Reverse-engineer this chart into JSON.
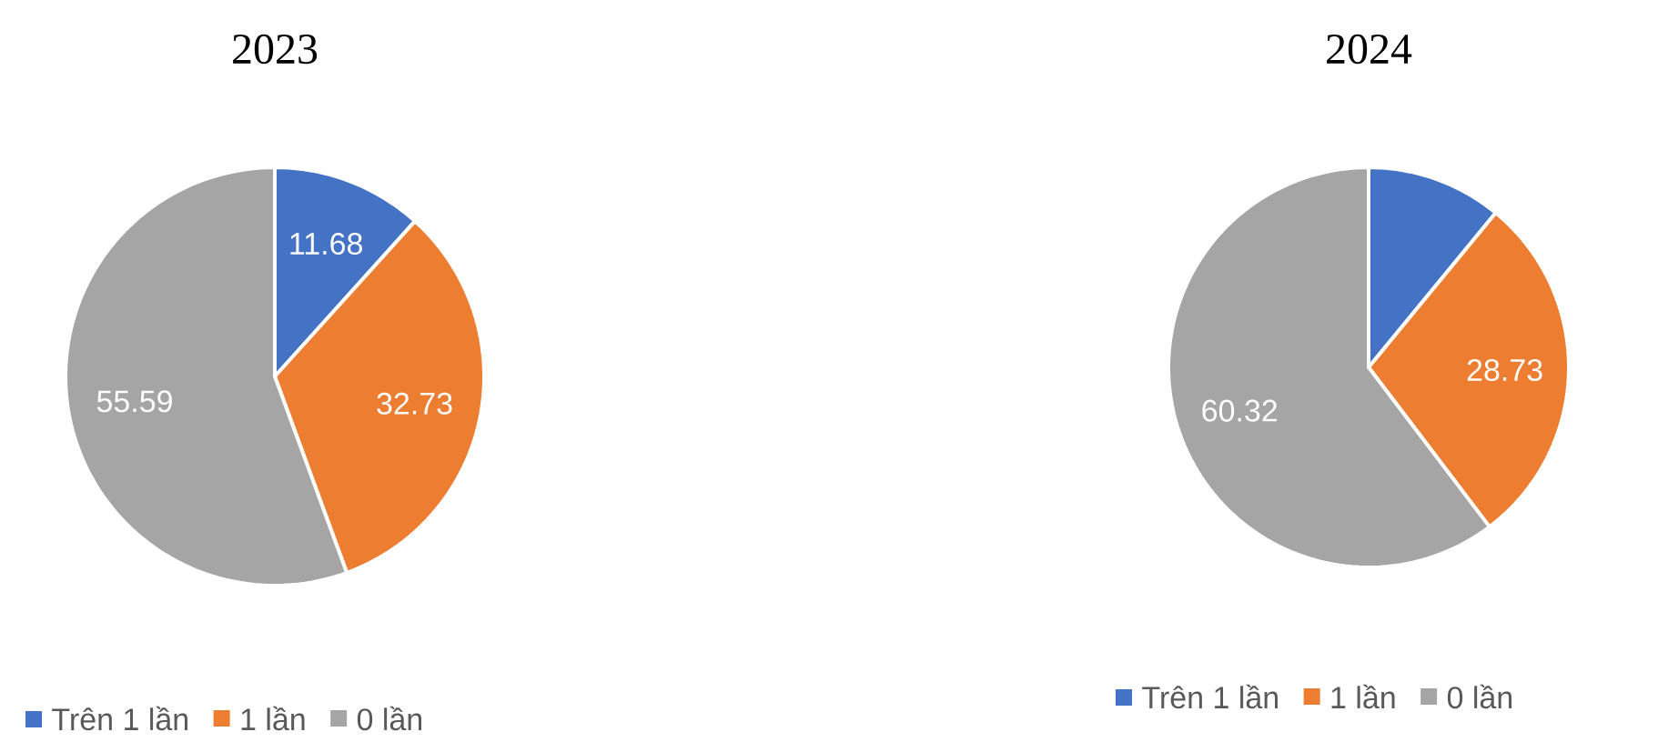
{
  "chart_data": [
    {
      "type": "pie",
      "title": "2023",
      "categories": [
        "Trên 1 lần",
        "1 lần",
        "0 lần"
      ],
      "values": [
        11.68,
        32.73,
        55.59
      ],
      "colors": [
        "#4472c4",
        "#ed7d31",
        "#a5a5a5"
      ],
      "data_labels": true,
      "legend": "bottom"
    },
    {
      "type": "pie",
      "title": "2024",
      "categories": [
        "Trên 1 lần",
        "1 lần",
        "0 lần"
      ],
      "values": [
        10.95,
        28.73,
        60.32
      ],
      "colors": [
        "#4472c4",
        "#ed7d31",
        "#a5a5a5"
      ],
      "value_labels": [
        null,
        "28.73",
        "60.32"
      ],
      "legend": "bottom"
    }
  ]
}
